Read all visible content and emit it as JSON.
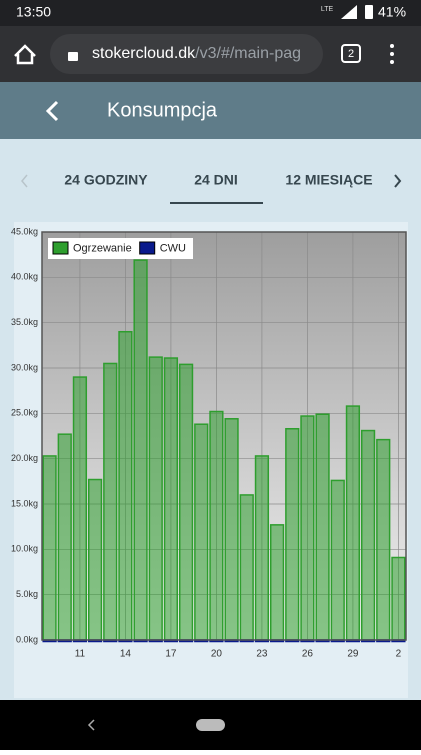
{
  "status_bar": {
    "time": "13:50",
    "network": "LTE",
    "battery": "41%"
  },
  "browser": {
    "url_host": "stokercloud.dk",
    "url_path": "/v3/#/main-pag",
    "tab_count": "2"
  },
  "header": {
    "title": "Konsumpcja"
  },
  "tabs": [
    "24 GODZINY",
    "24 DNI",
    "12 MIESIĄCE"
  ],
  "chart_data": {
    "type": "bar",
    "categories": [
      null,
      null,
      "11",
      null,
      null,
      "14",
      null,
      null,
      "17",
      null,
      null,
      "20",
      null,
      null,
      "23",
      null,
      null,
      "26",
      null,
      null,
      "29",
      null,
      null,
      "2"
    ],
    "series": [
      {
        "name": "Ogrzewanie",
        "color": "#2e9e2e",
        "values": [
          20.3,
          22.7,
          29.0,
          17.7,
          30.5,
          34.0,
          41.9,
          31.2,
          31.1,
          30.4,
          23.8,
          25.2,
          24.4,
          16.0,
          20.3,
          12.7,
          23.3,
          24.7,
          24.9,
          17.6,
          25.8,
          23.1,
          22.1,
          9.1
        ]
      },
      {
        "name": "CWU",
        "color": "#0a1a8c",
        "values": [
          0,
          0,
          0,
          0,
          0,
          0,
          0,
          0,
          0,
          0,
          0,
          0,
          0,
          0,
          0,
          0,
          0,
          0,
          0,
          0,
          0,
          0,
          0,
          0
        ]
      }
    ],
    "ylim": [
      0,
      45
    ],
    "yticks": [
      {
        "value": 0,
        "label": "0.0kg"
      },
      {
        "value": 5,
        "label": "5.0kg"
      },
      {
        "value": 10,
        "label": "10.0kg"
      },
      {
        "value": 15,
        "label": "15.0kg"
      },
      {
        "value": 20,
        "label": "20.0kg"
      },
      {
        "value": 25,
        "label": "25.0kg"
      },
      {
        "value": 30,
        "label": "30.0kg"
      },
      {
        "value": 35,
        "label": "35.0kg"
      },
      {
        "value": 40,
        "label": "40.0kg"
      },
      {
        "value": 45,
        "label": "45.0kg"
      }
    ],
    "grid": true,
    "legend": "top-left"
  }
}
